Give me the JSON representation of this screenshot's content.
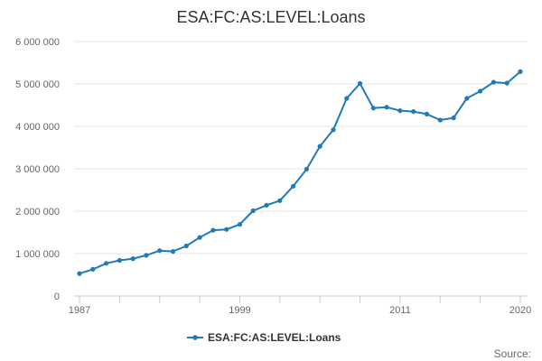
{
  "chart_data": {
    "type": "line",
    "title": "ESA:FC:AS:LEVEL:Loans",
    "x": [
      1987,
      1988,
      1989,
      1990,
      1991,
      1992,
      1993,
      1994,
      1995,
      1996,
      1997,
      1998,
      1999,
      2000,
      2001,
      2002,
      2003,
      2004,
      2005,
      2006,
      2007,
      2008,
      2009,
      2010,
      2011,
      2012,
      2013,
      2014,
      2015,
      2016,
      2017,
      2018,
      2019,
      2020
    ],
    "series": [
      {
        "name": "ESA:FC:AS:LEVEL:Loans",
        "color": "#1f7ab8",
        "values": [
          530000,
          630000,
          770000,
          840000,
          880000,
          960000,
          1070000,
          1050000,
          1180000,
          1380000,
          1550000,
          1570000,
          1690000,
          2010000,
          2140000,
          2250000,
          2590000,
          2990000,
          3530000,
          3920000,
          4660000,
          5010000,
          4430000,
          4450000,
          4370000,
          4350000,
          4290000,
          4150000,
          4200000,
          4660000,
          4830000,
          5040000,
          5020000,
          5290000
        ]
      }
    ],
    "ylim": [
      0,
      6000000
    ],
    "yticks": [
      {
        "value": 0,
        "label": "0"
      },
      {
        "value": 1000000,
        "label": "1 000 000"
      },
      {
        "value": 2000000,
        "label": "2 000 000"
      },
      {
        "value": 3000000,
        "label": "3 000 000"
      },
      {
        "value": 4000000,
        "label": "4 000 000"
      },
      {
        "value": 5000000,
        "label": "5 000 000"
      },
      {
        "value": 6000000,
        "label": "6 000 000"
      }
    ],
    "xlim": [
      1987,
      2020
    ],
    "xticks": [
      1987,
      1990,
      1993,
      1996,
      1999,
      2002,
      2005,
      2008,
      2011,
      2014,
      2017,
      2020
    ],
    "xtick_labels": [
      {
        "value": 1987,
        "label": "1987"
      },
      {
        "value": 1999,
        "label": "1999"
      },
      {
        "value": 2011,
        "label": "2011"
      },
      {
        "value": 2020,
        "label": "2020"
      }
    ],
    "grid": "horizontal",
    "legend_position": "bottom-center",
    "source_label": "Source:"
  }
}
